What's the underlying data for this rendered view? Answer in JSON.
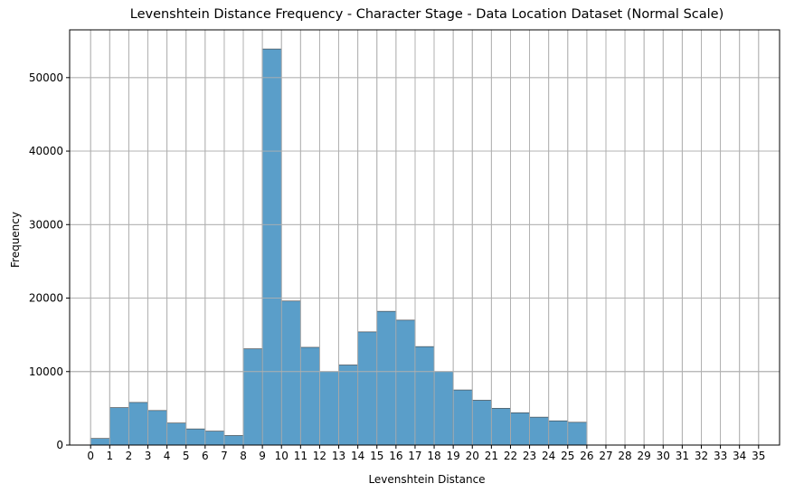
{
  "chart_data": {
    "type": "bar",
    "title": "Levenshtein Distance Frequency - Character Stage - Data Location Dataset (Normal Scale)",
    "xlabel": "Levenshtein Distance",
    "ylabel": "Frequency",
    "grid": true,
    "xlim": [
      -1.1,
      36.1
    ],
    "ylim": [
      0,
      56500
    ],
    "x_ticks": [
      0,
      1,
      2,
      3,
      4,
      5,
      6,
      7,
      8,
      9,
      10,
      11,
      12,
      13,
      14,
      15,
      16,
      17,
      18,
      19,
      20,
      21,
      22,
      23,
      24,
      25,
      26,
      27,
      28,
      29,
      30,
      31,
      32,
      33,
      34,
      35
    ],
    "y_ticks": [
      0,
      10000,
      20000,
      30000,
      40000,
      50000
    ],
    "bins": [
      {
        "start": 0,
        "end": 1,
        "value": 900
      },
      {
        "start": 1,
        "end": 2,
        "value": 5100
      },
      {
        "start": 2,
        "end": 3,
        "value": 5800
      },
      {
        "start": 3,
        "end": 4,
        "value": 4700
      },
      {
        "start": 4,
        "end": 5,
        "value": 3000
      },
      {
        "start": 5,
        "end": 6,
        "value": 2200
      },
      {
        "start": 6,
        "end": 7,
        "value": 1900
      },
      {
        "start": 7,
        "end": 8,
        "value": 1300
      },
      {
        "start": 8,
        "end": 9,
        "value": 13100
      },
      {
        "start": 9,
        "end": 10,
        "value": 53900
      },
      {
        "start": 10,
        "end": 11,
        "value": 19600
      },
      {
        "start": 11,
        "end": 12,
        "value": 13300
      },
      {
        "start": 12,
        "end": 13,
        "value": 10000
      },
      {
        "start": 13,
        "end": 14,
        "value": 10900
      },
      {
        "start": 14,
        "end": 15,
        "value": 15400
      },
      {
        "start": 15,
        "end": 16,
        "value": 18200
      },
      {
        "start": 16,
        "end": 17,
        "value": 17000
      },
      {
        "start": 17,
        "end": 18,
        "value": 13400
      },
      {
        "start": 18,
        "end": 19,
        "value": 10000
      },
      {
        "start": 19,
        "end": 20,
        "value": 7500
      },
      {
        "start": 20,
        "end": 21,
        "value": 6100
      },
      {
        "start": 21,
        "end": 22,
        "value": 5000
      },
      {
        "start": 22,
        "end": 23,
        "value": 4400
      },
      {
        "start": 23,
        "end": 24,
        "value": 3800
      },
      {
        "start": 24,
        "end": 25,
        "value": 3300
      },
      {
        "start": 25,
        "end": 26,
        "value": 3100
      }
    ],
    "colors": {
      "bar_fill": "#5a9ec9",
      "bar_edge": "#3f3f3f",
      "grid": "#b0b0b0",
      "axis": "#000000"
    }
  }
}
